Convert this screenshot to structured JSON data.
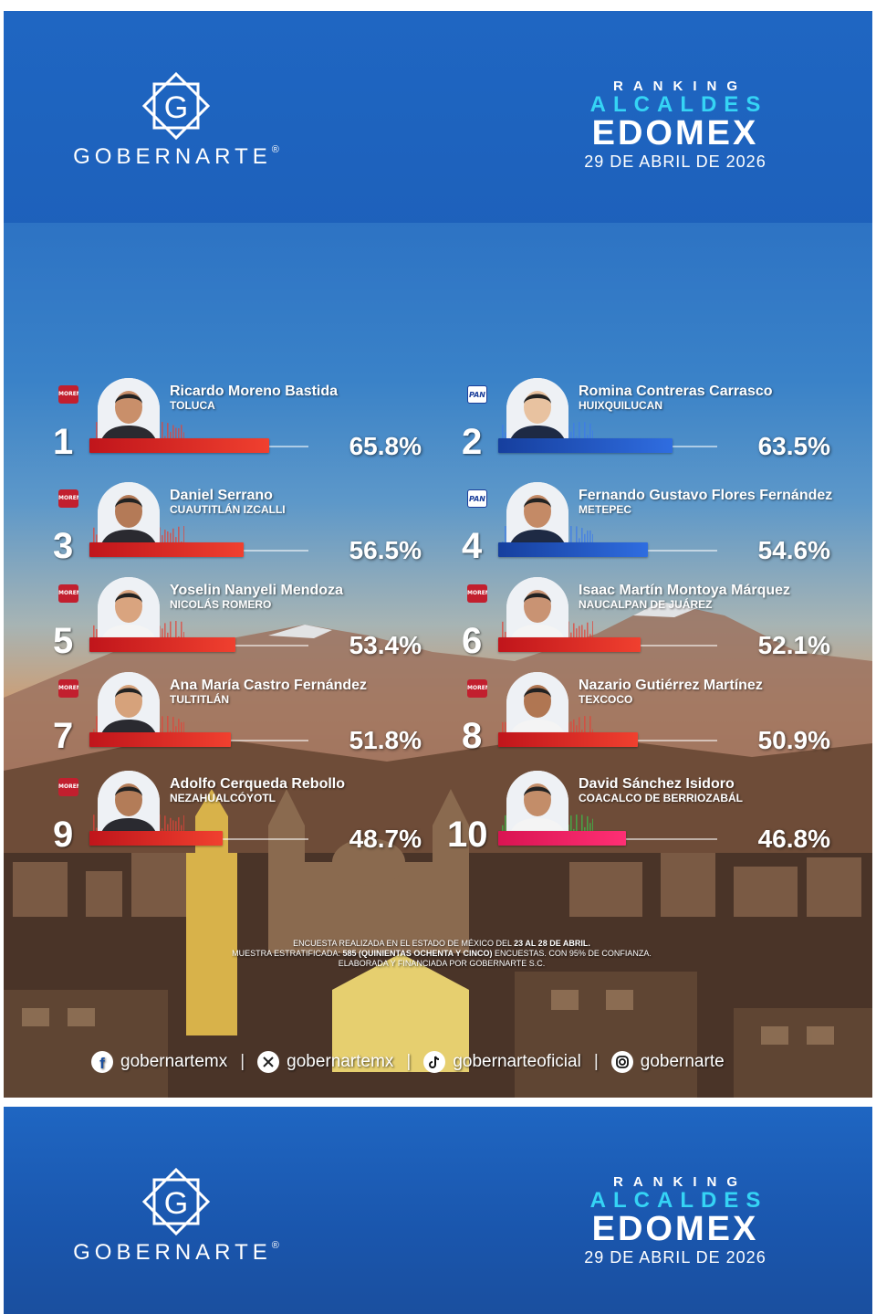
{
  "header": {
    "brand": "GOBERNARTE",
    "brand_mark": "®",
    "logo_icon": "g-diamond-logo-icon",
    "title_line1": "RANKING",
    "title_line2": "ALCALDES",
    "title_line3": "EDOMEX",
    "date": "29 DE ABRIL DE 2026"
  },
  "colors": {
    "morena": "#d9271f",
    "pan": "#1f4fbf",
    "pvem_pri": "#e8195b",
    "accent": "#35d4f5"
  },
  "chart_data": {
    "type": "bar",
    "categories": [
      "Ricardo Moreno Bastida",
      "Romina Contreras Carrasco",
      "Daniel Serrano",
      "Fernando Gustavo Flores Fernández",
      "Yoselin Nanyeli Mendoza",
      "Isaac Martín Montoya Márquez",
      "Ana María Castro Fernández",
      "Nazario Gutiérrez Martínez",
      "Adolfo Cerqueda Rebollo",
      "David Sánchez Isidoro"
    ],
    "values": [
      65.8,
      63.5,
      56.5,
      54.6,
      53.4,
      52.1,
      51.8,
      50.9,
      48.7,
      46.8
    ],
    "ylim": [
      0,
      100
    ],
    "entries": [
      {
        "rank": "1",
        "name": "Ricardo Moreno Bastida",
        "city": "TOLUCA",
        "value": 65.8,
        "label": "65.8%",
        "party": "morena",
        "party_label": "MORENA"
      },
      {
        "rank": "2",
        "name": "Romina Contreras Carrasco",
        "city": "HUIXQUILUCAN",
        "value": 63.5,
        "label": "63.5%",
        "party": "pan",
        "party_label": "PAN"
      },
      {
        "rank": "3",
        "name": "Daniel Serrano",
        "city": "CUAUTITLÁN IZCALLI",
        "value": 56.5,
        "label": "56.5%",
        "party": "morena",
        "party_label": "MORENA"
      },
      {
        "rank": "4",
        "name": "Fernando Gustavo Flores Fernández",
        "city": "METEPEC",
        "value": 54.6,
        "label": "54.6%",
        "party": "pan",
        "party_label": "PAN"
      },
      {
        "rank": "5",
        "name": "Yoselin Nanyeli Mendoza",
        "city": "NICOLÁS ROMERO",
        "value": 53.4,
        "label": "53.4%",
        "party": "morena",
        "party_label": "MORENA"
      },
      {
        "rank": "6",
        "name": "Isaac Martín Montoya Márquez",
        "city": "NAUCALPAN DE JUÁREZ",
        "value": 52.1,
        "label": "52.1%",
        "party": "morena",
        "party_label": "MORENA"
      },
      {
        "rank": "7",
        "name": "Ana María Castro Fernández",
        "city": "TULTITLÁN",
        "value": 51.8,
        "label": "51.8%",
        "party": "morena",
        "party_label": "MORENA"
      },
      {
        "rank": "8",
        "name": "Nazario Gutiérrez Martínez",
        "city": "TEXCOCO",
        "value": 50.9,
        "label": "50.9%",
        "party": "morena",
        "party_label": "MORENA"
      },
      {
        "rank": "9",
        "name": "Adolfo Cerqueda Rebollo",
        "city": "NEZAHUALCÓYOTL",
        "value": 48.7,
        "label": "48.7%",
        "party": "morena",
        "party_label": "MORENA"
      },
      {
        "rank": "10",
        "name": "David Sánchez Isidoro",
        "city": "COACALCO DE BERRIOZABÁL",
        "value": 46.8,
        "label": "46.8%",
        "party": "pvem_pri",
        "party_label": ""
      }
    ]
  },
  "footnote": {
    "line1_a": "ENCUESTA REALIZADA EN EL ESTADO DE MÉXICO DEL ",
    "line1_b": "23 AL 28 DE ABRIL.",
    "line2_a": "MUESTRA ESTRATIFICADA: ",
    "line2_b": "585 (QUINIENTAS OCHENTA Y CINCO)",
    "line2_c": " ENCUESTAS. CON 95% DE CONFIANZA.",
    "line3": "ELABORADA Y FINANCIADA POR GOBERNARTE S.C."
  },
  "social": [
    {
      "icon": "facebook-icon",
      "handle": "gobernartemx"
    },
    {
      "icon": "x-icon",
      "handle": "gobernartemx"
    },
    {
      "icon": "tiktok-icon",
      "handle": "gobernarteoficial"
    },
    {
      "icon": "instagram-icon",
      "handle": "gobernarte"
    }
  ],
  "social_separator": "|"
}
